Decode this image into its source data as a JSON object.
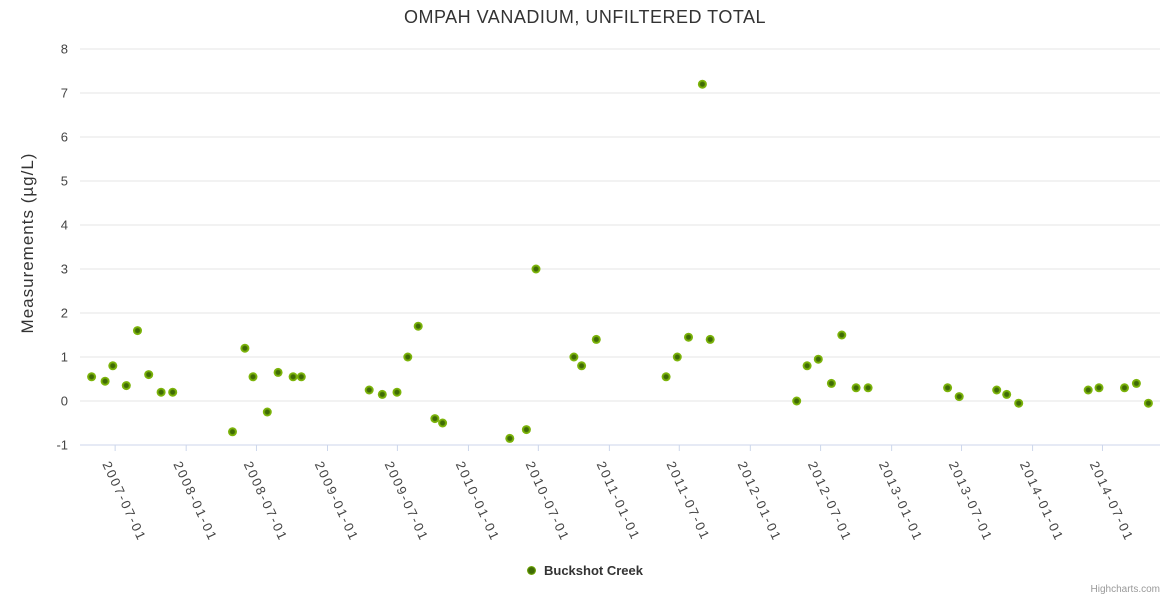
{
  "chart_data": {
    "type": "scatter",
    "title": "OMPAH VANADIUM, UNFILTERED TOTAL",
    "ylabel": "Measurements (µg/L)",
    "ylim": [
      -1,
      8
    ],
    "yticks": [
      -1,
      0,
      1,
      2,
      3,
      4,
      5,
      6,
      7,
      8
    ],
    "x_type": "datetime",
    "x_domain": [
      "2007-04-01",
      "2014-11-27"
    ],
    "xticks": [
      "2007-07-01",
      "2008-01-01",
      "2008-07-01",
      "2009-01-01",
      "2009-07-01",
      "2010-01-01",
      "2010-07-01",
      "2011-01-01",
      "2011-07-01",
      "2012-01-01",
      "2012-07-01",
      "2013-01-01",
      "2013-07-01",
      "2014-01-01",
      "2014-07-01"
    ],
    "grid": true,
    "legend_position": "bottom-center",
    "series": [
      {
        "name": "Buckshot Creek",
        "color": "#7CB40A",
        "marker_core_color": "#3F6B05",
        "points": [
          [
            "2007-05-01",
            0.55
          ],
          [
            "2007-06-05",
            0.45
          ],
          [
            "2007-06-25",
            0.8
          ],
          [
            "2007-07-30",
            0.35
          ],
          [
            "2007-08-28",
            1.6
          ],
          [
            "2007-09-26",
            0.6
          ],
          [
            "2007-10-28",
            0.2
          ],
          [
            "2007-11-27",
            0.2
          ],
          [
            "2008-04-30",
            -0.7
          ],
          [
            "2008-06-01",
            1.2
          ],
          [
            "2008-06-22",
            0.55
          ],
          [
            "2008-07-29",
            -0.25
          ],
          [
            "2008-08-26",
            0.65
          ],
          [
            "2008-10-04",
            0.55
          ],
          [
            "2008-10-25",
            0.55
          ],
          [
            "2009-04-19",
            0.25
          ],
          [
            "2009-05-23",
            0.15
          ],
          [
            "2009-06-30",
            0.2
          ],
          [
            "2009-07-28",
            1.0
          ],
          [
            "2009-08-24",
            1.7
          ],
          [
            "2009-10-06",
            -0.4
          ],
          [
            "2009-10-26",
            -0.5
          ],
          [
            "2010-04-18",
            -0.85
          ],
          [
            "2010-05-31",
            -0.65
          ],
          [
            "2010-06-25",
            3.0
          ],
          [
            "2010-10-01",
            1.0
          ],
          [
            "2010-10-21",
            0.8
          ],
          [
            "2010-11-28",
            1.4
          ],
          [
            "2011-05-28",
            0.55
          ],
          [
            "2011-06-26",
            1.0
          ],
          [
            "2011-07-25",
            1.45
          ],
          [
            "2011-08-30",
            7.2
          ],
          [
            "2011-09-19",
            1.4
          ],
          [
            "2012-04-30",
            0.0
          ],
          [
            "2012-05-27",
            0.8
          ],
          [
            "2012-06-25",
            0.95
          ],
          [
            "2012-07-29",
            0.4
          ],
          [
            "2012-08-25",
            1.5
          ],
          [
            "2012-10-01",
            0.3
          ],
          [
            "2012-11-01",
            0.3
          ],
          [
            "2013-05-26",
            0.3
          ],
          [
            "2013-06-25",
            0.1
          ],
          [
            "2013-09-30",
            0.25
          ],
          [
            "2013-10-26",
            0.15
          ],
          [
            "2013-11-26",
            -0.05
          ],
          [
            "2014-05-25",
            0.25
          ],
          [
            "2014-06-22",
            0.3
          ],
          [
            "2014-08-27",
            0.3
          ],
          [
            "2014-09-27",
            0.4
          ],
          [
            "2014-10-28",
            -0.05
          ]
        ]
      }
    ]
  },
  "credits": {
    "label": "Highcharts.com"
  },
  "colors": {
    "background": "#FFFFFF",
    "grid": "#E6E6E6",
    "axis_line": "#CCD6EB",
    "title_text": "#333333",
    "tick_text": "#444444",
    "credits_text": "#999999"
  }
}
